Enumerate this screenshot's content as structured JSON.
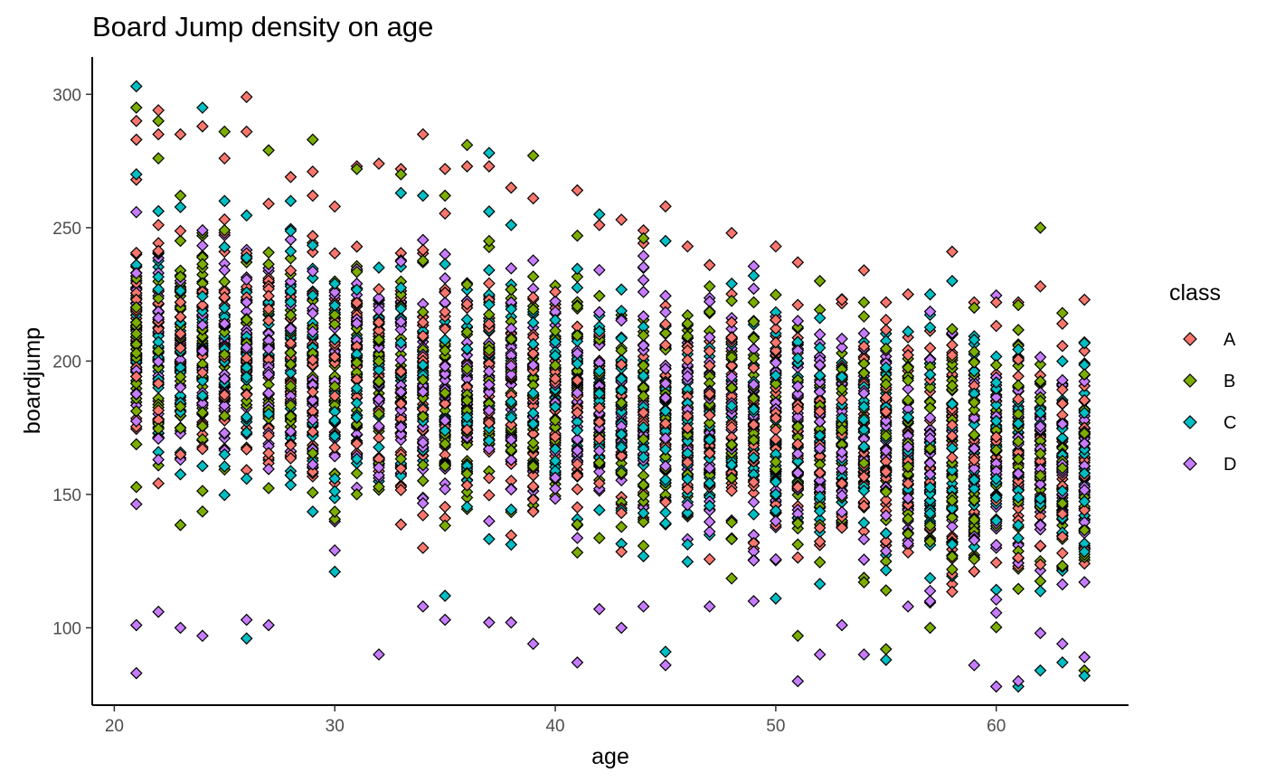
{
  "chart_data": {
    "type": "scatter",
    "title": "Board Jump density on age",
    "xlabel": "age",
    "ylabel": "boardjump",
    "xlim": [
      19.0,
      66.0
    ],
    "ylim": [
      71.0,
      314.0
    ],
    "x_ticks": [
      20,
      30,
      40,
      50,
      60
    ],
    "y_ticks": [
      100,
      150,
      200,
      250,
      300
    ],
    "grid": false,
    "marker": "diamond",
    "marker_edge_color": "#000000",
    "legend": {
      "title": "class",
      "position": "right",
      "entries": [
        {
          "label": "A",
          "color": "#F8766D"
        },
        {
          "label": "B",
          "color": "#7CAE00"
        },
        {
          "label": "C",
          "color": "#00BFC4"
        },
        {
          "label": "D",
          "color": "#C77CFF"
        }
      ]
    },
    "series": [
      {
        "name": "A",
        "color": "#F8766D",
        "x": [
          21,
          21,
          21,
          22,
          22,
          23,
          24,
          25,
          26,
          26,
          28,
          29,
          31,
          32,
          33,
          34,
          35,
          36,
          37,
          38,
          39,
          41,
          42,
          43,
          44,
          45,
          46,
          47,
          48,
          50,
          51,
          53,
          54,
          55,
          56,
          58,
          59,
          60,
          61,
          62,
          63,
          64
        ],
        "y": [
          290,
          283,
          268,
          294,
          285,
          285,
          288,
          276,
          299,
          286,
          269,
          271,
          273,
          274,
          272,
          285,
          272,
          273,
          273,
          265,
          261,
          264,
          251,
          253,
          249,
          258,
          243,
          236,
          248,
          243,
          237,
          223,
          234,
          222,
          225,
          241,
          222,
          222,
          222,
          228,
          214,
          223
        ]
      },
      {
        "name": "B",
        "color": "#7CAE00",
        "x": [
          21,
          22,
          22,
          23,
          25,
          27,
          29,
          31,
          33,
          35,
          36,
          37,
          39,
          41,
          44,
          47,
          49,
          51,
          52,
          54,
          55,
          57,
          58,
          59,
          61,
          62,
          63,
          64
        ],
        "y": [
          295,
          290,
          276,
          262,
          286,
          279,
          283,
          272,
          270,
          262,
          281,
          245,
          277,
          247,
          246,
          228,
          222,
          97,
          230,
          222,
          92,
          100,
          212,
          220,
          221,
          250,
          218,
          84
        ],
        "jitter_only": true
      },
      {
        "name": "C",
        "color": "#00BFC4",
        "x": [
          21,
          21,
          24,
          25,
          26,
          28,
          30,
          33,
          34,
          35,
          37,
          38,
          42,
          45,
          45,
          48,
          49,
          50,
          52,
          55,
          57,
          58,
          59,
          61,
          62,
          63,
          64
        ],
        "y": [
          303,
          270,
          295,
          260,
          96,
          260,
          121,
          263,
          262,
          112,
          278,
          251,
          255,
          245,
          91,
          229,
          232,
          111,
          205,
          88,
          225,
          230,
          208,
          78,
          84,
          87,
          82
        ]
      },
      {
        "name": "D",
        "color": "#C77CFF",
        "x": [
          21,
          21,
          22,
          23,
          24,
          26,
          27,
          30,
          32,
          34,
          35,
          37,
          38,
          39,
          41,
          42,
          43,
          44,
          45,
          47,
          49,
          51,
          52,
          53,
          54,
          56,
          57,
          59,
          60,
          61,
          62,
          63,
          64
        ],
        "y": [
          83,
          101,
          106,
          100,
          97,
          103,
          101,
          129,
          90,
          108,
          103,
          102,
          102,
          94,
          87,
          107,
          100,
          108,
          86,
          108,
          110,
          80,
          90,
          101,
          90,
          108,
          110,
          86,
          78,
          80,
          98,
          94,
          89
        ]
      }
    ]
  }
}
